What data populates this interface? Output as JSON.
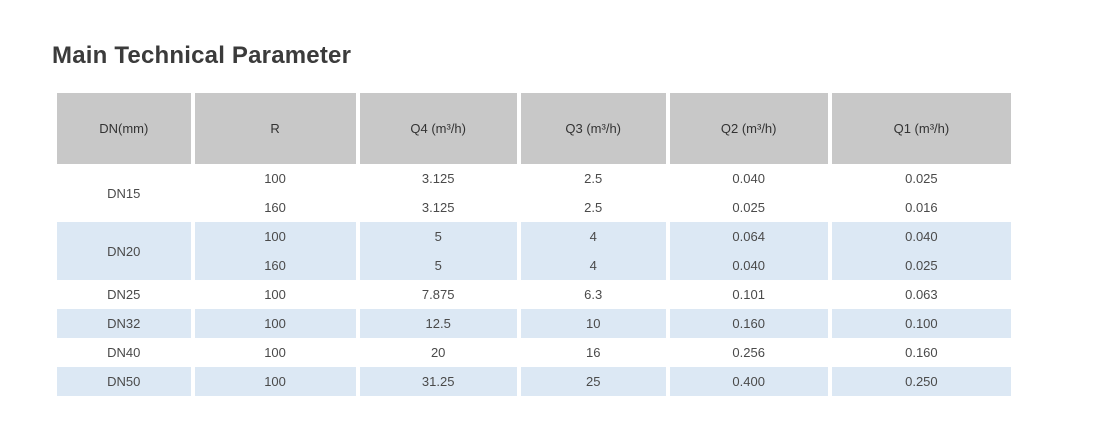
{
  "page": {
    "title": "Main Technical Parameter"
  },
  "table": {
    "columns": [
      {
        "key": "dn",
        "label": "DN(mm)"
      },
      {
        "key": "r",
        "label": "R"
      },
      {
        "key": "q4",
        "label": "Q4 (m³/h)"
      },
      {
        "key": "q3",
        "label": "Q3 (m³/h)"
      },
      {
        "key": "q2",
        "label": "Q2 (m³/h)"
      },
      {
        "key": "q1",
        "label": "Q1 (m³/h)"
      }
    ],
    "groups": [
      {
        "dn": "DN15",
        "shade": "white",
        "rows": [
          {
            "r": "100",
            "q4": "3.125",
            "q3": "2.5",
            "q2": "0.040",
            "q1": "0.025"
          },
          {
            "r": "160",
            "q4": "3.125",
            "q3": "2.5",
            "q2": "0.025",
            "q1": "0.016"
          }
        ]
      },
      {
        "dn": "DN20",
        "shade": "blue",
        "rows": [
          {
            "r": "100",
            "q4": "5",
            "q3": "4",
            "q2": "0.064",
            "q1": "0.040"
          },
          {
            "r": "160",
            "q4": "5",
            "q3": "4",
            "q2": "0.040",
            "q1": "0.025"
          }
        ]
      },
      {
        "dn": "DN25",
        "shade": "white",
        "rows": [
          {
            "r": "100",
            "q4": "7.875",
            "q3": "6.3",
            "q2": "0.101",
            "q1": "0.063"
          }
        ]
      },
      {
        "dn": "DN32",
        "shade": "blue",
        "rows": [
          {
            "r": "100",
            "q4": "12.5",
            "q3": "10",
            "q2": "0.160",
            "q1": "0.100"
          }
        ]
      },
      {
        "dn": "DN40",
        "shade": "white",
        "rows": [
          {
            "r": "100",
            "q4": "20",
            "q3": "16",
            "q2": "0.256",
            "q1": "0.160"
          }
        ]
      },
      {
        "dn": "DN50",
        "shade": "blue",
        "rows": [
          {
            "r": "100",
            "q4": "31.25",
            "q3": "25",
            "q2": "0.400",
            "q1": "0.250"
          }
        ]
      }
    ],
    "colors": {
      "header_bg": "#c8c8c8",
      "row_blue": "#dce8f4",
      "row_white": "#ffffff",
      "title_text": "#3b3b3b",
      "body_text": "#4a4a4a"
    }
  }
}
